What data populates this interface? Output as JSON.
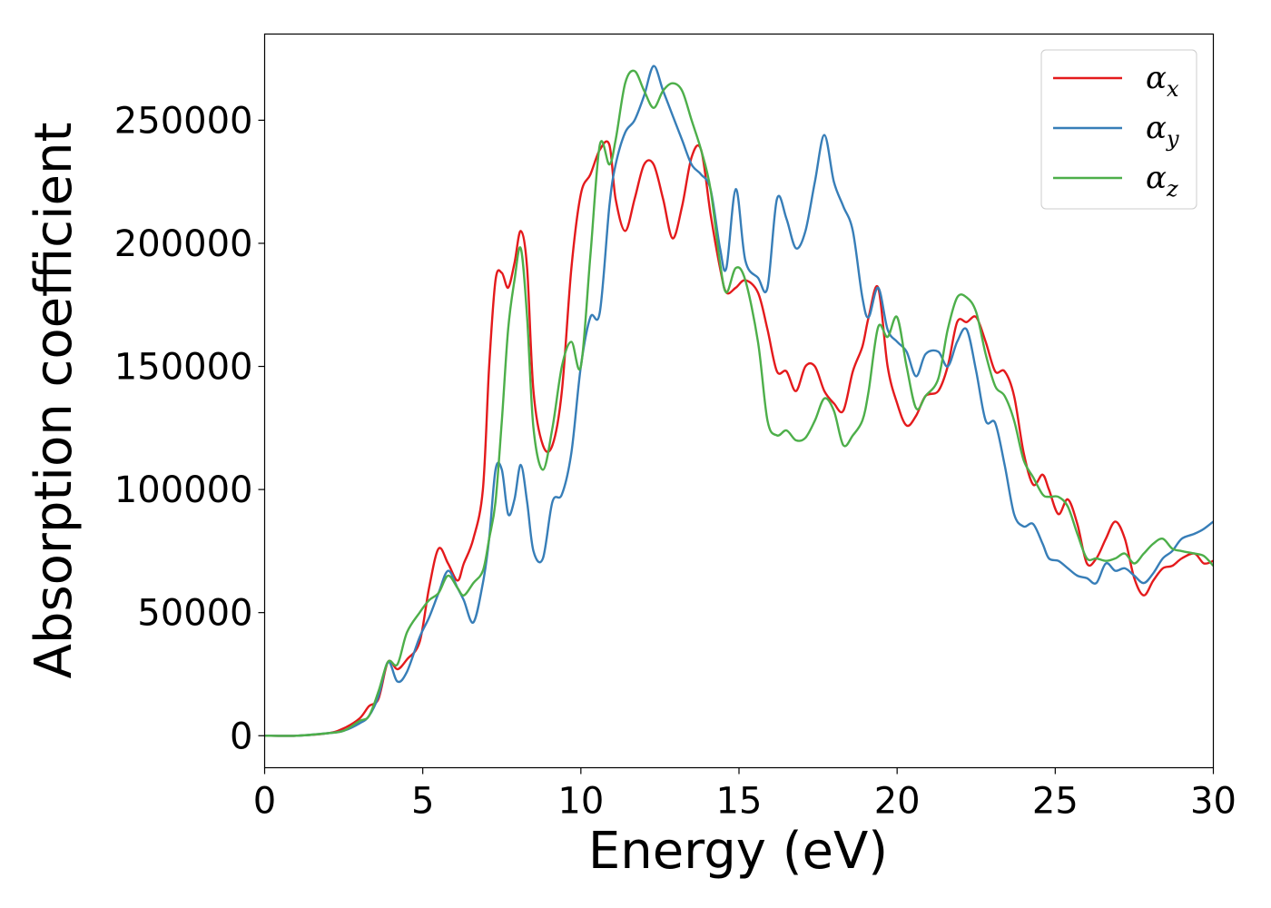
{
  "chart_data": {
    "type": "line",
    "xlabel": "Energy (eV)",
    "ylabel": "Absorption coefficient",
    "xlim": [
      0,
      30
    ],
    "ylim": [
      -13000,
      285000
    ],
    "xticks": [
      0,
      5,
      10,
      15,
      20,
      25,
      30
    ],
    "xtick_labels": [
      "0",
      "5",
      "10",
      "15",
      "20",
      "25",
      "30"
    ],
    "yticks": [
      0,
      50000,
      100000,
      150000,
      200000,
      250000
    ],
    "ytick_labels": [
      "0",
      "50000",
      "100000",
      "150000",
      "200000",
      "250000"
    ],
    "grid": false,
    "legend": {
      "position": "top-right"
    },
    "series": [
      {
        "name": "α_x",
        "symbol": "α",
        "sub": "x",
        "color": "#e41a1c",
        "x": [
          0,
          1,
          2,
          2.5,
          3,
          3.3,
          3.6,
          3.9,
          4.2,
          4.5,
          4.9,
          5.2,
          5.5,
          5.8,
          6.1,
          6.3,
          6.6,
          6.9,
          7.1,
          7.3,
          7.5,
          7.7,
          7.9,
          8.1,
          8.3,
          8.5,
          8.8,
          9.1,
          9.4,
          9.7,
          10.0,
          10.3,
          10.6,
          10.9,
          11.1,
          11.4,
          11.7,
          12.0,
          12.3,
          12.6,
          12.9,
          13.2,
          13.5,
          13.8,
          14.1,
          14.4,
          14.6,
          14.9,
          15.2,
          15.6,
          15.9,
          16.2,
          16.5,
          16.8,
          17.1,
          17.4,
          17.7,
          18.0,
          18.3,
          18.6,
          18.9,
          19.1,
          19.4,
          19.7,
          20.0,
          20.3,
          20.6,
          20.9,
          21.3,
          21.6,
          21.9,
          22.2,
          22.5,
          22.8,
          23.1,
          23.4,
          23.7,
          24.0,
          24.3,
          24.6,
          24.8,
          25.1,
          25.4,
          25.7,
          26.0,
          26.3,
          26.6,
          26.9,
          27.2,
          27.5,
          27.8,
          28.1,
          28.4,
          28.7,
          29.0,
          29.4,
          29.7,
          30.0
        ],
        "y": [
          0,
          0,
          1000,
          3000,
          7000,
          12000,
          15000,
          30000,
          27000,
          31000,
          38000,
          60000,
          76000,
          70000,
          63000,
          70000,
          80000,
          100000,
          150000,
          185000,
          188000,
          182000,
          192000,
          205000,
          190000,
          140000,
          118000,
          118000,
          140000,
          190000,
          220000,
          228000,
          238000,
          240000,
          218000,
          205000,
          218000,
          232000,
          232000,
          218000,
          202000,
          215000,
          235000,
          238000,
          212000,
          190000,
          180000,
          182000,
          185000,
          180000,
          165000,
          148000,
          148000,
          140000,
          150000,
          150000,
          140000,
          135000,
          132000,
          148000,
          158000,
          170000,
          182000,
          150000,
          135000,
          126000,
          130000,
          138000,
          140000,
          150000,
          168000,
          168000,
          170000,
          160000,
          148000,
          148000,
          138000,
          115000,
          102000,
          106000,
          100000,
          90000,
          96000,
          86000,
          70000,
          72000,
          80000,
          87000,
          80000,
          64000,
          57000,
          63000,
          68000,
          69000,
          72000,
          74000,
          70000,
          71000
        ]
      },
      {
        "name": "α_y",
        "symbol": "α",
        "sub": "y",
        "color": "#377eb8",
        "x": [
          0,
          1,
          2,
          2.5,
          3,
          3.3,
          3.6,
          3.9,
          4.2,
          4.5,
          4.9,
          5.2,
          5.5,
          5.8,
          6.1,
          6.3,
          6.6,
          6.9,
          7.1,
          7.3,
          7.5,
          7.7,
          7.9,
          8.1,
          8.3,
          8.5,
          8.8,
          9.1,
          9.4,
          9.7,
          10.0,
          10.3,
          10.6,
          10.9,
          11.1,
          11.4,
          11.7,
          12.0,
          12.3,
          12.6,
          12.9,
          13.2,
          13.5,
          13.8,
          14.1,
          14.4,
          14.6,
          14.9,
          15.2,
          15.6,
          15.9,
          16.2,
          16.5,
          16.8,
          17.1,
          17.4,
          17.7,
          18.0,
          18.3,
          18.6,
          18.9,
          19.1,
          19.4,
          19.7,
          20.0,
          20.3,
          20.6,
          20.9,
          21.3,
          21.6,
          21.9,
          22.2,
          22.5,
          22.8,
          23.1,
          23.4,
          23.7,
          24.0,
          24.3,
          24.6,
          24.8,
          25.1,
          25.4,
          25.7,
          26.0,
          26.3,
          26.6,
          26.9,
          27.2,
          27.5,
          27.8,
          28.1,
          28.4,
          28.7,
          29.0,
          29.4,
          29.7,
          30.0
        ],
        "y": [
          0,
          0,
          1000,
          2000,
          5000,
          8000,
          16000,
          30000,
          22000,
          26000,
          40000,
          48000,
          58000,
          67000,
          60000,
          55000,
          46000,
          62000,
          80000,
          108000,
          108000,
          90000,
          96000,
          110000,
          95000,
          75000,
          72000,
          95000,
          98000,
          115000,
          150000,
          170000,
          172000,
          215000,
          232000,
          245000,
          250000,
          260000,
          272000,
          262000,
          252000,
          242000,
          232000,
          228000,
          222000,
          198000,
          190000,
          222000,
          193000,
          186000,
          182000,
          218000,
          210000,
          198000,
          205000,
          225000,
          244000,
          225000,
          215000,
          205000,
          178000,
          170000,
          182000,
          165000,
          160000,
          156000,
          146000,
          155000,
          156000,
          150000,
          160000,
          165000,
          148000,
          128000,
          127000,
          110000,
          90000,
          85000,
          86000,
          78000,
          72000,
          71000,
          68000,
          65000,
          64000,
          62000,
          70000,
          67000,
          68000,
          65000,
          62000,
          66000,
          72000,
          75000,
          80000,
          82000,
          84000,
          87000
        ]
      },
      {
        "name": "α_z",
        "symbol": "α",
        "sub": "z",
        "color": "#4daf4a",
        "x": [
          0,
          1,
          2,
          2.5,
          3,
          3.3,
          3.6,
          3.9,
          4.2,
          4.5,
          4.9,
          5.2,
          5.5,
          5.8,
          6.1,
          6.3,
          6.6,
          6.9,
          7.1,
          7.3,
          7.5,
          7.7,
          7.9,
          8.1,
          8.3,
          8.5,
          8.8,
          9.1,
          9.4,
          9.7,
          10.0,
          10.3,
          10.6,
          10.9,
          11.1,
          11.4,
          11.7,
          12.0,
          12.3,
          12.6,
          12.9,
          13.2,
          13.5,
          13.8,
          14.1,
          14.4,
          14.6,
          14.9,
          15.2,
          15.6,
          15.9,
          16.2,
          16.5,
          16.8,
          17.1,
          17.4,
          17.7,
          18.0,
          18.3,
          18.6,
          18.9,
          19.1,
          19.4,
          19.7,
          20.0,
          20.3,
          20.6,
          20.9,
          21.3,
          21.6,
          21.9,
          22.2,
          22.5,
          22.8,
          23.1,
          23.4,
          23.7,
          24.0,
          24.3,
          24.6,
          24.8,
          25.1,
          25.4,
          25.7,
          26.0,
          26.3,
          26.6,
          26.9,
          27.2,
          27.5,
          27.8,
          28.1,
          28.4,
          28.7,
          29.0,
          29.4,
          29.7,
          30.0
        ],
        "y": [
          0,
          0,
          1000,
          2000,
          6000,
          8000,
          18000,
          30000,
          29000,
          42000,
          50000,
          55000,
          58000,
          65000,
          60000,
          57000,
          62000,
          67000,
          80000,
          95000,
          128000,
          165000,
          185000,
          198000,
          170000,
          125000,
          108000,
          125000,
          150000,
          160000,
          150000,
          195000,
          240000,
          232000,
          242000,
          265000,
          270000,
          262000,
          255000,
          262000,
          265000,
          262000,
          250000,
          238000,
          222000,
          192000,
          180000,
          190000,
          185000,
          160000,
          128000,
          122000,
          124000,
          120000,
          121000,
          128000,
          137000,
          132000,
          118000,
          122000,
          128000,
          140000,
          166000,
          162000,
          170000,
          150000,
          133000,
          138000,
          145000,
          165000,
          178000,
          178000,
          172000,
          155000,
          142000,
          138000,
          128000,
          112000,
          105000,
          98000,
          97000,
          97000,
          93000,
          82000,
          72000,
          72000,
          71000,
          72000,
          74000,
          70000,
          74000,
          78000,
          80000,
          76000,
          75000,
          74000,
          73000,
          69000
        ]
      }
    ]
  }
}
